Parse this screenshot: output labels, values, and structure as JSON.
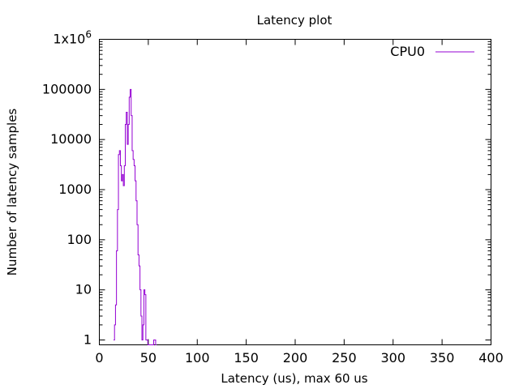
{
  "chart_data": {
    "type": "line",
    "title": "Latency plot",
    "xlabel": "Latency (us), max 60 us",
    "ylabel": "Number of latency samples",
    "xlim": [
      0,
      400
    ],
    "ylim": [
      0.8,
      1000000
    ],
    "yscale": "log",
    "legend_position": "top-right",
    "x_ticks": [
      0,
      50,
      100,
      150,
      200,
      250,
      300,
      350,
      400
    ],
    "y_ticks": [
      {
        "value": 1,
        "base": "1",
        "exp": ""
      },
      {
        "value": 10,
        "base": "10",
        "exp": ""
      },
      {
        "value": 100,
        "base": "100",
        "exp": ""
      },
      {
        "value": 1000,
        "base": "1000",
        "exp": ""
      },
      {
        "value": 10000,
        "base": "10000",
        "exp": ""
      },
      {
        "value": 100000,
        "base": "100000",
        "exp": ""
      },
      {
        "value": 1000000,
        "base": "1x10",
        "exp": "6"
      }
    ],
    "series": [
      {
        "name": "CPU0",
        "color": "#9400d3",
        "x": [
          15,
          16,
          17,
          18,
          19,
          20,
          21,
          22,
          23,
          24,
          25,
          26,
          27,
          28,
          29,
          30,
          31,
          32,
          33,
          34,
          35,
          36,
          37,
          38,
          39,
          40,
          41,
          42,
          43,
          44,
          45,
          46,
          47,
          48,
          49,
          50,
          51,
          52,
          53,
          54,
          55,
          56,
          57,
          58
        ],
        "y": [
          1,
          2,
          5,
          60,
          400,
          5000,
          6000,
          3000,
          1500,
          2000,
          1200,
          3000,
          20000,
          35000,
          8000,
          20000,
          70000,
          100000,
          30000,
          6000,
          4000,
          3000,
          1500,
          600,
          200,
          50,
          30,
          10,
          3,
          1,
          2,
          10,
          8,
          1,
          1,
          0,
          0,
          0,
          0,
          0,
          0,
          1,
          1,
          0
        ]
      }
    ]
  }
}
